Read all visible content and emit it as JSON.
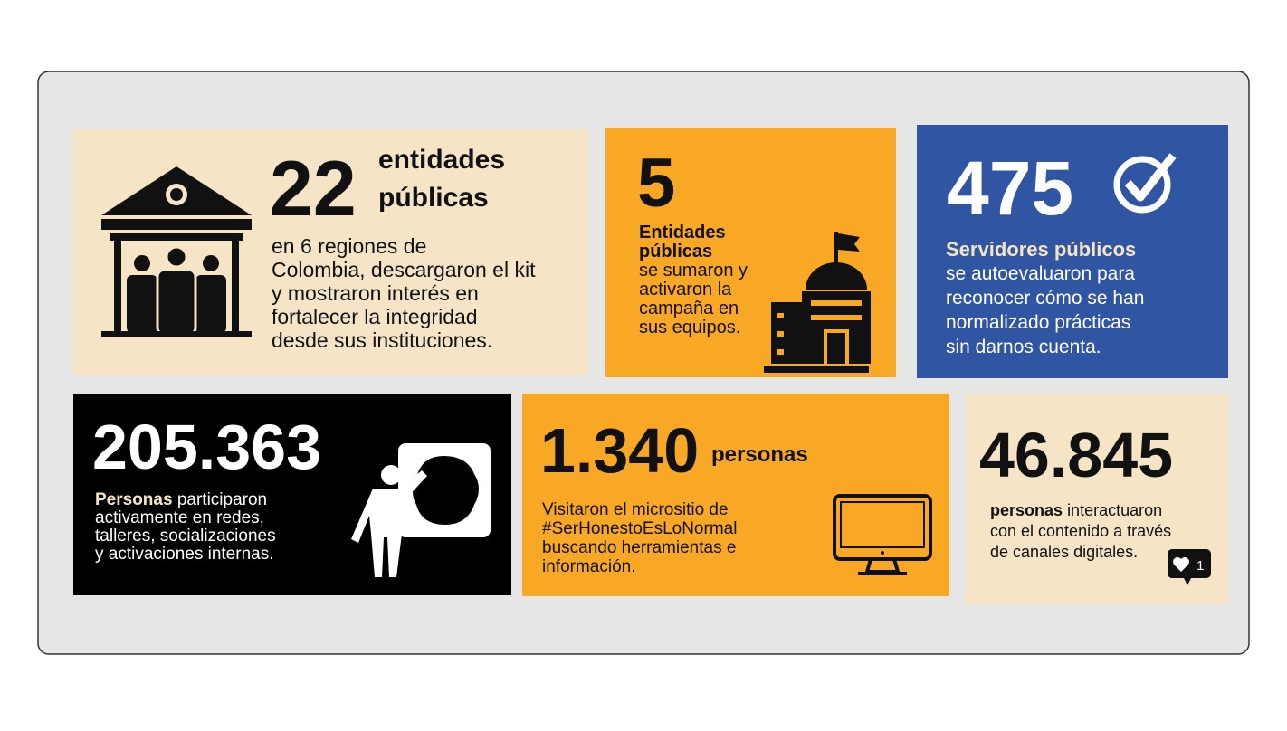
{
  "cards": [
    {
      "number": "22",
      "unit": [
        "entidades",
        "públicas"
      ],
      "lines": [
        "en 6 regiones de",
        "Colombia, descargaron el kit",
        "y mostraron interés en",
        "fortalecer la integridad",
        "desde sus instituciones."
      ]
    },
    {
      "number": "5",
      "heading": [
        "Entidades",
        "públicas"
      ],
      "lines": [
        "se sumaron y",
        "activaron la",
        "campaña en",
        "sus equipos."
      ]
    },
    {
      "number": "475",
      "heading": "Servidores públicos",
      "lines": [
        "se autoevaluaron para",
        "reconocer cómo se han",
        "normalizado prácticas",
        "sin darnos cuenta."
      ]
    },
    {
      "number": "205.363",
      "heading": "Personas",
      "lines": [
        "participaron",
        "activamente en redes,",
        "talleres, socializaciones",
        "y activaciones internas."
      ]
    },
    {
      "number": "1.340",
      "unit": "personas",
      "lines": [
        "Visitaron el micrositio de",
        "#SerHonestoEsLoNormal",
        "buscando herramientas e",
        "información."
      ]
    },
    {
      "number": "46.845",
      "heading": "personas",
      "lines": [
        "interactuaron",
        "con el contenido a través",
        "de canales digitales."
      ],
      "likes": "1"
    }
  ]
}
